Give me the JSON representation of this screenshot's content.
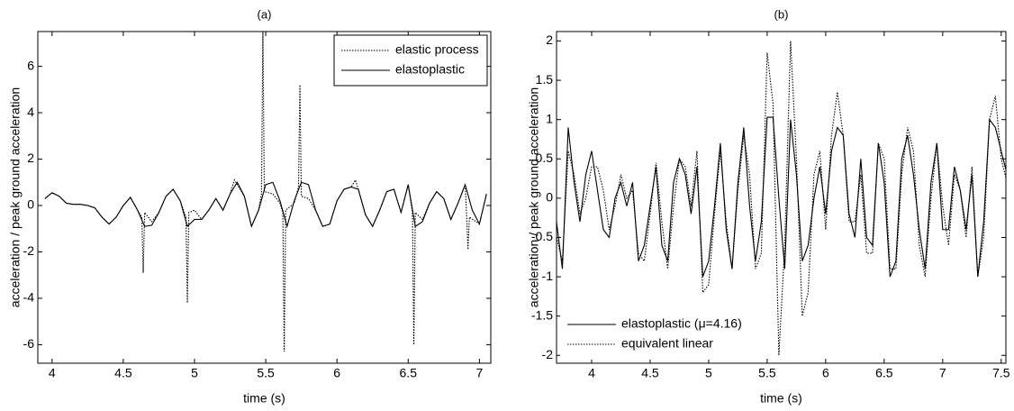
{
  "chart_data": [
    {
      "type": "line",
      "title": "(a)",
      "xlabel": "time (s)",
      "ylabel": "acceleration / peak ground acceleration",
      "xlim": [
        3.9,
        7.08
      ],
      "xticks": [
        4,
        4.5,
        5,
        5.5,
        6,
        6.5,
        7
      ],
      "ylim": [
        -6.8,
        7.5
      ],
      "yticks": [
        -6,
        -4,
        -2,
        0,
        2,
        4,
        6
      ],
      "legend": "upper right",
      "series": [
        {
          "name": "elastic process",
          "color": "#000000",
          "style": "dotted",
          "x": [
            3.95,
            4.0,
            4.05,
            4.1,
            4.15,
            4.2,
            4.25,
            4.3,
            4.35,
            4.4,
            4.45,
            4.5,
            4.55,
            4.6,
            4.63,
            4.64,
            4.65,
            4.7,
            4.75,
            4.8,
            4.85,
            4.9,
            4.94,
            4.95,
            4.96,
            5.0,
            5.05,
            5.1,
            5.15,
            5.2,
            5.25,
            5.28,
            5.3,
            5.35,
            5.4,
            5.45,
            5.47,
            5.48,
            5.49,
            5.55,
            5.6,
            5.62,
            5.63,
            5.64,
            5.7,
            5.73,
            5.74,
            5.75,
            5.8,
            5.85,
            5.9,
            5.95,
            6.0,
            6.05,
            6.1,
            6.13,
            6.15,
            6.2,
            6.25,
            6.3,
            6.35,
            6.4,
            6.45,
            6.5,
            6.53,
            6.54,
            6.55,
            6.6,
            6.65,
            6.7,
            6.75,
            6.8,
            6.85,
            6.9,
            6.91,
            6.92,
            6.93,
            7.0,
            7.05
          ],
          "values": [
            0.3,
            0.55,
            0.4,
            0.1,
            0.05,
            0.05,
            0,
            -0.1,
            -0.5,
            -0.8,
            -0.5,
            0,
            0.35,
            -0.2,
            -0.5,
            -2.9,
            -0.3,
            -0.7,
            -0.3,
            0.4,
            0.7,
            0.2,
            -0.5,
            -4.2,
            -0.3,
            -0.2,
            -0.6,
            -0.2,
            0.3,
            -0.2,
            0.5,
            1.1,
            0.9,
            0.4,
            -0.9,
            -0.2,
            0.5,
            7.5,
            0.6,
            0.5,
            0.1,
            -0.3,
            -6.3,
            -0.2,
            0.1,
            0.8,
            5.2,
            0.4,
            0.3,
            -0.2,
            -0.9,
            -0.8,
            0.2,
            0.7,
            0.8,
            1.1,
            0.7,
            -0.4,
            -0.9,
            -0.2,
            0.6,
            0.7,
            -0.3,
            0.9,
            -0.3,
            -6.0,
            -0.3,
            -0.6,
            0.1,
            0.6,
            0.3,
            -0.6,
            0.1,
            0.9,
            -0.4,
            -1.9,
            -0.5,
            -0.8,
            0.5
          ]
        },
        {
          "name": "elastoplastic",
          "color": "#000000",
          "style": "solid",
          "x": [
            3.95,
            4.0,
            4.05,
            4.1,
            4.15,
            4.2,
            4.25,
            4.3,
            4.35,
            4.4,
            4.45,
            4.5,
            4.55,
            4.6,
            4.65,
            4.7,
            4.75,
            4.8,
            4.85,
            4.9,
            4.95,
            5.0,
            5.05,
            5.1,
            5.15,
            5.2,
            5.25,
            5.3,
            5.35,
            5.4,
            5.45,
            5.5,
            5.55,
            5.6,
            5.65,
            5.7,
            5.75,
            5.8,
            5.85,
            5.9,
            5.95,
            6.0,
            6.05,
            6.1,
            6.15,
            6.2,
            6.25,
            6.3,
            6.35,
            6.4,
            6.45,
            6.5,
            6.55,
            6.6,
            6.65,
            6.7,
            6.75,
            6.8,
            6.85,
            6.9,
            6.95,
            7.0,
            7.05
          ],
          "values": [
            0.3,
            0.55,
            0.4,
            0.1,
            0.05,
            0.05,
            0,
            -0.1,
            -0.5,
            -0.8,
            -0.5,
            0,
            0.35,
            -0.2,
            -0.9,
            -0.85,
            -0.3,
            0.4,
            0.7,
            0.2,
            -0.9,
            -0.6,
            -0.6,
            -0.2,
            0.3,
            -0.2,
            0.5,
            1.0,
            0.4,
            -0.9,
            -0.2,
            0.9,
            1.0,
            0.2,
            -0.9,
            0.2,
            1.0,
            0.9,
            -0.2,
            -0.9,
            -0.8,
            0.2,
            0.7,
            0.8,
            0.7,
            -0.4,
            -0.9,
            -0.2,
            0.6,
            0.7,
            -0.3,
            0.9,
            -0.9,
            -0.7,
            0.1,
            0.6,
            0.3,
            -0.6,
            0.1,
            0.9,
            -0.2,
            -0.8,
            0.5
          ]
        }
      ]
    },
    {
      "type": "line",
      "title": "(b)",
      "xlabel": "time (s)",
      "ylabel": "acceleration / peak ground acceleration",
      "xlim": [
        3.7,
        7.54
      ],
      "xticks": [
        4,
        4.5,
        5,
        5.5,
        6,
        6.5,
        7,
        7.5
      ],
      "ylim": [
        -2.1,
        2.12
      ],
      "yticks": [
        -2,
        -1.5,
        -1,
        -0.5,
        0,
        0.5,
        1,
        1.5,
        2
      ],
      "legend": "lower left",
      "x": [
        3.7,
        3.75,
        3.8,
        3.85,
        3.9,
        3.95,
        4.0,
        4.05,
        4.1,
        4.15,
        4.2,
        4.25,
        4.3,
        4.35,
        4.4,
        4.45,
        4.5,
        4.55,
        4.6,
        4.65,
        4.7,
        4.75,
        4.8,
        4.85,
        4.9,
        4.95,
        5.0,
        5.05,
        5.1,
        5.15,
        5.2,
        5.25,
        5.3,
        5.35,
        5.4,
        5.45,
        5.5,
        5.55,
        5.6,
        5.65,
        5.7,
        5.75,
        5.8,
        5.85,
        5.9,
        5.95,
        6.0,
        6.05,
        6.1,
        6.15,
        6.2,
        6.25,
        6.3,
        6.35,
        6.4,
        6.45,
        6.5,
        6.55,
        6.6,
        6.65,
        6.7,
        6.75,
        6.8,
        6.85,
        6.9,
        6.95,
        7.0,
        7.05,
        7.1,
        7.15,
        7.2,
        7.25,
        7.3,
        7.35,
        7.4,
        7.45,
        7.5,
        7.55
      ],
      "series": [
        {
          "name": "elastoplastic (μ=4.16)",
          "color": "#000000",
          "style": "solid",
          "values": [
            -0.3,
            -0.9,
            0.9,
            0.2,
            -0.3,
            0.3,
            0.6,
            0.1,
            -0.4,
            -0.5,
            0.0,
            0.2,
            -0.1,
            0.2,
            -0.8,
            -0.6,
            -0.1,
            0.4,
            -0.6,
            -0.8,
            0.2,
            0.5,
            0.3,
            -0.2,
            0.4,
            -1.0,
            -0.8,
            -0.1,
            0.7,
            -0.4,
            -0.9,
            0.2,
            0.9,
            -0.1,
            -0.8,
            -0.3,
            1.03,
            1.03,
            0.0,
            -0.9,
            1.0,
            0.3,
            -0.8,
            -0.6,
            0.0,
            0.4,
            -0.2,
            0.6,
            0.9,
            0.8,
            -0.2,
            -0.5,
            0.5,
            -0.5,
            -0.6,
            0.7,
            0.2,
            -1.0,
            -0.8,
            0.5,
            0.8,
            0.3,
            -0.4,
            -0.9,
            0.2,
            0.7,
            -0.4,
            -0.4,
            0.4,
            0.1,
            -0.4,
            0.3,
            -1.0,
            -0.3,
            1.0,
            0.9,
            0.6,
            0.3
          ]
        },
        {
          "name": "equivalent linear",
          "color": "#000000",
          "style": "dotted",
          "values": [
            -0.5,
            -0.8,
            0.6,
            0.3,
            -0.2,
            0.0,
            0.4,
            0.4,
            0.1,
            -0.4,
            -0.1,
            0.3,
            0.0,
            0.1,
            -0.7,
            -0.8,
            -0.2,
            0.45,
            -0.3,
            -0.9,
            -0.1,
            0.5,
            0.4,
            -0.1,
            0.6,
            -1.2,
            -1.1,
            -0.2,
            0.6,
            -0.3,
            -0.9,
            0.1,
            0.8,
            0.3,
            -0.9,
            -0.7,
            1.85,
            1.2,
            -2.0,
            -0.6,
            2.0,
            0.5,
            -1.5,
            -1.2,
            0.3,
            0.6,
            -0.4,
            0.8,
            1.35,
            0.8,
            -0.3,
            -0.3,
            0.3,
            -0.7,
            -0.7,
            0.7,
            0.5,
            -0.9,
            -0.9,
            0.3,
            0.9,
            0.6,
            -0.6,
            -1.0,
            0.0,
            0.7,
            -0.1,
            -0.6,
            0.3,
            0.1,
            -0.5,
            0.4,
            -1.0,
            -0.5,
            1.0,
            1.3,
            0.5,
            0.2
          ]
        }
      ]
    }
  ]
}
